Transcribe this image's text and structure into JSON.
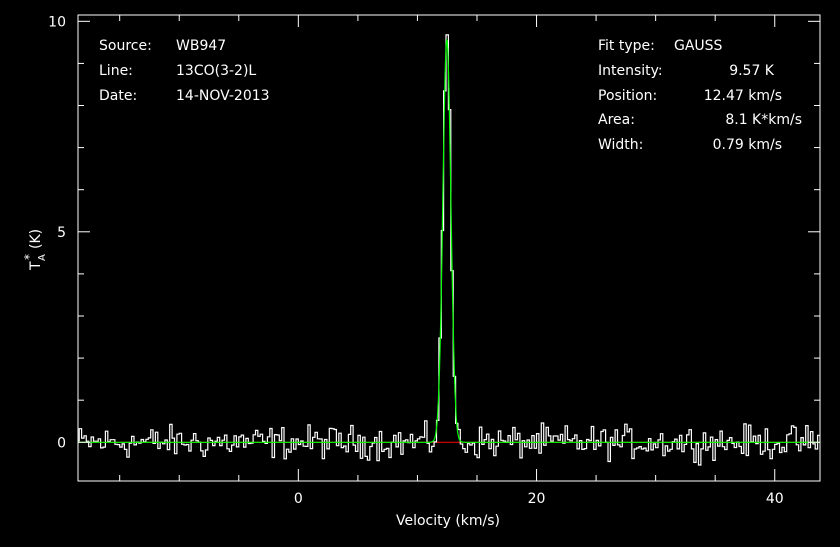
{
  "chart_data": {
    "type": "line",
    "xlabel": "Velocity (km/s)",
    "ylabel_main": "T",
    "ylabel_sub": "A",
    "ylabel_sup": "*",
    "ylabel_unit": "(K)",
    "xlim": [
      -18.5,
      43.8
    ],
    "ylim": [
      -0.92,
      10.15
    ],
    "x_ticks": [
      0,
      20,
      40
    ],
    "x_tick_labels": [
      "0",
      "20",
      "40"
    ],
    "y_ticks": [
      0,
      5,
      10
    ],
    "y_tick_labels": [
      "0",
      "5",
      "10"
    ],
    "header_left": [
      {
        "key": "Source:",
        "value": "WB947"
      },
      {
        "key": "Line:",
        "value": "13CO(3-2)L"
      },
      {
        "key": "Date:",
        "value": "14-NOV-2013"
      }
    ],
    "header_right": [
      {
        "key": "Fit type:",
        "value": "GAUSS"
      },
      {
        "key": "Intensity:",
        "value": "9.57 K"
      },
      {
        "key": "Position:",
        "value": "12.47 km/s"
      },
      {
        "key": "Area:",
        "value": "8.1 K*km/s"
      },
      {
        "key": "Width:",
        "value": "0.79 km/s"
      }
    ],
    "fit": {
      "amplitude": 9.57,
      "center": 12.47,
      "fwhm": 0.79
    },
    "baseline_level": 0,
    "channel_width": 0.2,
    "series": [
      {
        "x": [
          12.0,
          12.2,
          12.4,
          12.6,
          12.8,
          13.0
        ],
        "y": [
          3.8,
          8.2,
          9.95,
          7.6,
          2.9,
          0.3
        ]
      }
    ],
    "colors": {
      "background": "#000000",
      "frame": "#ffffff",
      "spectrum": "#ffffff",
      "fit": "#00ff00",
      "baseline": "#ff0000"
    }
  }
}
